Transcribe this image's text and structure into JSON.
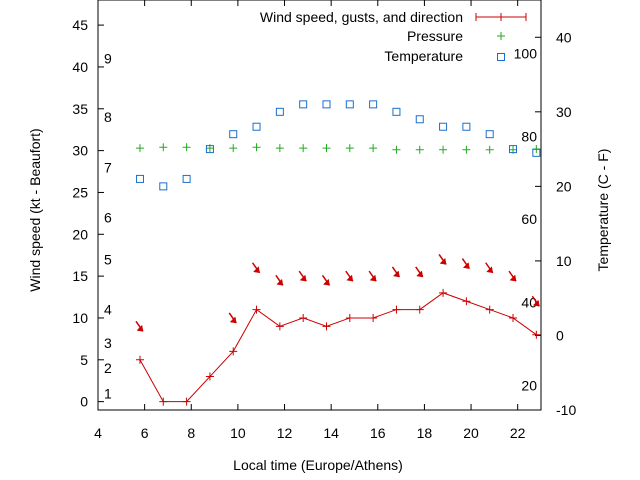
{
  "chart_data": {
    "type": "line",
    "xlabel": "Local time (Europe/Athens)",
    "ylabel": "Wind speed (kt - Beaufort)",
    "y2label": "Temperature (C - F)",
    "xlim": [
      4,
      23
    ],
    "ylim": [
      -1,
      48
    ],
    "y2lim": [
      -10,
      45
    ],
    "x_ticks": [
      4,
      6,
      8,
      10,
      12,
      14,
      16,
      18,
      20,
      22
    ],
    "y_ticks": [
      0,
      5,
      10,
      15,
      20,
      25,
      30,
      35,
      40,
      45
    ],
    "y2_ticks": [
      -10,
      0,
      10,
      20,
      30,
      40
    ],
    "beaufort_labels": [
      {
        "label": "1",
        "kt": 1
      },
      {
        "label": "2",
        "kt": 4
      },
      {
        "label": "3",
        "kt": 7
      },
      {
        "label": "4",
        "kt": 11
      },
      {
        "label": "5",
        "kt": 17
      },
      {
        "label": "6",
        "kt": 22
      },
      {
        "label": "7",
        "kt": 28
      },
      {
        "label": "8",
        "kt": 34
      },
      {
        "label": "9",
        "kt": 41
      }
    ],
    "fahrenheit_labels": [
      {
        "label": "20",
        "c": -6.7
      },
      {
        "label": "40",
        "c": 4.4
      },
      {
        "label": "60",
        "c": 15.6
      },
      {
        "label": "80",
        "c": 26.7
      },
      {
        "label": "100",
        "c": 37.8
      }
    ],
    "legend": {
      "placement": "top-right",
      "entries": [
        "Wind speed, gusts, and direction",
        "Pressure",
        "Temperature"
      ]
    },
    "colors": {
      "wind": "#cc0000",
      "pressure": "#22aa22",
      "temperature": "#1a6fcc",
      "axis": "#000000"
    },
    "series": [
      {
        "name": "Wind speed, gusts, and direction",
        "x": [
          5.8,
          6.8,
          7.8,
          8.8,
          9.8,
          10.8,
          11.8,
          12.8,
          13.8,
          14.8,
          15.8,
          16.8,
          17.8,
          18.8,
          19.8,
          20.8,
          21.8,
          22.8
        ],
        "y": [
          5,
          0,
          0,
          3,
          6,
          11,
          9,
          10,
          9,
          10,
          10,
          11,
          11,
          13,
          12,
          11,
          10,
          8
        ]
      },
      {
        "name": "Pressure",
        "x": [
          5.8,
          6.8,
          7.8,
          8.8,
          9.8,
          10.8,
          11.8,
          12.8,
          13.8,
          14.8,
          15.8,
          16.8,
          17.8,
          18.8,
          19.8,
          20.8,
          21.8,
          22.8
        ],
        "y": [
          30.3,
          30.4,
          30.4,
          30.3,
          30.3,
          30.4,
          30.3,
          30.3,
          30.3,
          30.3,
          30.3,
          30.1,
          30.1,
          30.1,
          30.1,
          30.1,
          30.1,
          30.2
        ]
      },
      {
        "name": "Temperature",
        "x": [
          5.8,
          6.8,
          7.8,
          8.8,
          9.8,
          10.8,
          11.8,
          12.8,
          13.8,
          14.8,
          15.8,
          16.8,
          17.8,
          18.8,
          19.8,
          20.8,
          21.8,
          22.8
        ],
        "y": [
          21,
          20,
          21,
          25,
          27,
          28,
          30,
          31,
          31,
          31,
          31,
          30,
          29,
          28,
          28,
          27,
          25,
          24.5
        ]
      }
    ],
    "wind_direction_arrows": {
      "x": [
        5.8,
        9.8,
        10.8,
        11.8,
        12.8,
        13.8,
        14.8,
        15.8,
        16.8,
        17.8,
        18.8,
        19.8,
        20.8,
        21.8,
        22.8
      ],
      "y": [
        9,
        10,
        16,
        14.5,
        15,
        14.5,
        15,
        15,
        15.5,
        15.5,
        17,
        16.5,
        16,
        15,
        12
      ]
    }
  }
}
